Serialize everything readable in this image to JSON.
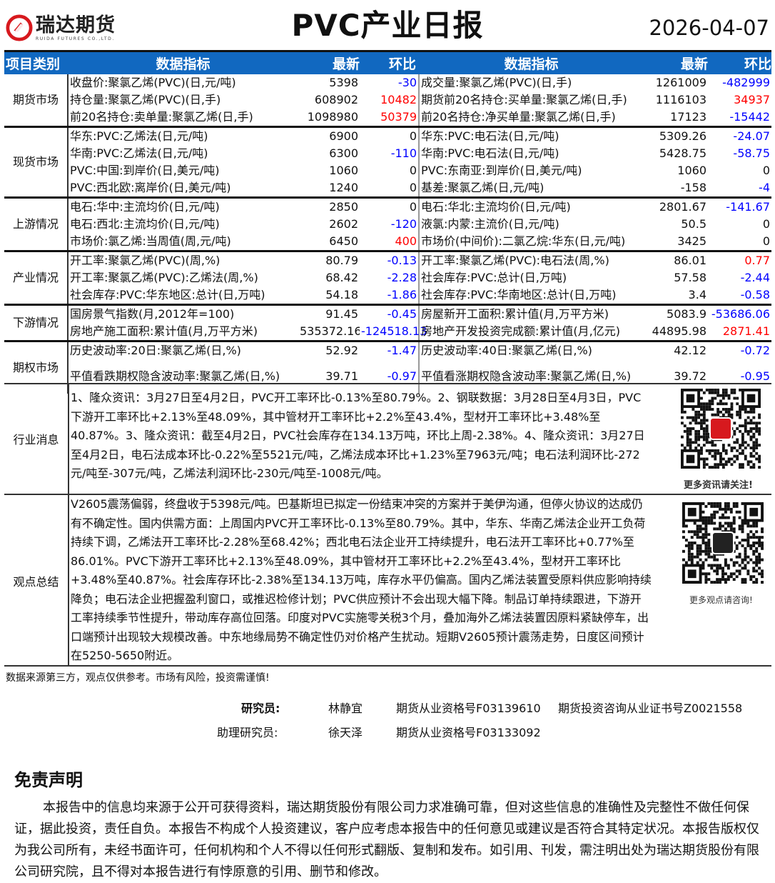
{
  "header": {
    "logo_cn": "瑞达期货",
    "logo_en": "RUIDA FUTURES CO.,LTD.",
    "title": "PVC产业日报",
    "date": "2026-04-07",
    "brand_color": "#d7191e"
  },
  "table": {
    "columns": [
      "项目类别",
      "数据指标",
      "最新",
      "环比",
      "数据指标",
      "最新",
      "环比"
    ],
    "header_color": "#1168c0",
    "sections": [
      {
        "category": "期货市场",
        "rows": [
          [
            "收盘价:聚氯乙烯(PVC)(日,元/吨)",
            "5398",
            "-30",
            "成交量:聚氯乙烯(PVC)(日,手)",
            "1261009",
            "-482999"
          ],
          [
            "持仓量:聚氯乙烯(PVC)(日,手)",
            "608902",
            "10482",
            "期货前20名持仓:买单量:聚氯乙烯(日,手)",
            "1116103",
            "34937"
          ],
          [
            "前20名持仓:卖单量:聚氯乙烯(日,手)",
            "1098980",
            "50379",
            "前20名持仓:净买单量:聚氯乙烯(日,手)",
            "17123",
            "-15442"
          ]
        ]
      },
      {
        "category": "现货市场",
        "rows": [
          [
            "华东:PVC:乙烯法(日,元/吨)",
            "6900",
            "0",
            "华东:PVC:电石法(日,元/吨)",
            "5309.26",
            "-24.07"
          ],
          [
            "华南:PVC:乙烯法(日,元/吨)",
            "6300",
            "-110",
            "华南:PVC:电石法(日,元/吨)",
            "5428.75",
            "-58.75"
          ],
          [
            "PVC:中国:到岸价(日,美元/吨)",
            "1060",
            "0",
            "PVC:东南亚:到岸价(日,美元/吨)",
            "1060",
            "0"
          ],
          [
            "PVC:西北欧:离岸价(日,美元/吨)",
            "1240",
            "0",
            "基差:聚氯乙烯(日,元/吨)",
            "-158",
            "-4"
          ]
        ]
      },
      {
        "category": "上游情况",
        "rows": [
          [
            "电石:华中:主流均价(日,元/吨)",
            "2850",
            "0",
            "电石:华北:主流均价(日,元/吨)",
            "2801.67",
            "-141.67"
          ],
          [
            "电石:西北:主流均价(日,元/吨)",
            "2602",
            "-120",
            "液氯:内蒙:主流价(日,元/吨)",
            "50.5",
            "0"
          ],
          [
            "市场价:氯乙烯:当周值(周,元/吨)",
            "6450",
            "400",
            "市场价(中间价):二氯乙烷:华东(日,元/吨)",
            "3425",
            "0"
          ]
        ]
      },
      {
        "category": "产业情况",
        "rows": [
          [
            "开工率:聚氯乙烯(PVC)(周,%)",
            "80.79",
            "-0.13",
            "开工率:聚氯乙烯(PVC):电石法(周,%)",
            "86.01",
            "0.77"
          ],
          [
            "开工率:聚氯乙烯(PVC):乙烯法(周,%)",
            "68.42",
            "-2.28",
            "社会库存:PVC:总计(日,万吨)",
            "57.58",
            "-2.44"
          ],
          [
            "社会库存:PVC:华东地区:总计(日,万吨)",
            "54.18",
            "-1.86",
            "社会库存:PVC:华南地区:总计(日,万吨)",
            "3.4",
            "-0.58"
          ]
        ]
      },
      {
        "category": "下游情况",
        "rows": [
          [
            "国房景气指数(月,2012年=100)",
            "91.45",
            "-0.45",
            "房屋新开工面积:累计值(月,万平方米)",
            "5083.9",
            "-53686.06"
          ],
          [
            "房地产施工面积:累计值(月,万平方米)",
            "535372.16",
            "-124518.13",
            "房地产开发投资完成额:累计值(月,亿元)",
            "44895.98",
            "2871.41"
          ]
        ]
      },
      {
        "category": "期权市场",
        "rows": [
          [
            "历史波动率:20日:聚氯乙烯(日,%)",
            "52.92",
            "-1.47",
            "历史波动率:40日:聚氯乙烯(日,%)",
            "42.12",
            "-0.72"
          ],
          [
            "平值看跌期权隐含波动率:聚氯乙烯(日,%)",
            "39.71",
            "-0.97",
            "平值看涨期权隐含波动率:聚氯乙烯(日,%)",
            "39.72",
            "-0.95"
          ]
        ]
      }
    ]
  },
  "news": {
    "label": "行业消息",
    "text": "1、隆众资讯：3月27日至4月2日，PVC开工率环比-0.13%至80.79%。2、钢联数据：3月28日至4月3日，PVC下游开工率环比+2.13%至48.09%，其中管材开工率环比+2.2%至43.4%，型材开工率环比+3.48%至40.87%。3、隆众资讯：截至4月2日，PVC社会库存在134.13万吨，环比上周-2.38%。4、隆众资讯：3月27日至4月2日，电石法成本环比-0.22%至5521元/吨，乙烯法成本环比+1.23%至7963元/吨；电石法利润环比-272元/吨至-307元/吨，乙烯法利润环比-230元/吨至-1008元/吨。",
    "qr_caption": "更多资讯请关注!"
  },
  "summary": {
    "label": "观点总结",
    "text": "V2605震荡偏弱，终盘收于5398元/吨。巴基斯坦已拟定一份结束冲突的方案并于美伊沟通，但停火协议的达成仍有不确定性。国内供需方面：上周国内PVC开工率环比-0.13%至80.79%。其中，华东、华南乙烯法企业开工负荷持续下调，乙烯法开工率环比-2.28%至68.42%；西北电石法企业开工持续提升，电石法开工率环比+0.77%至86.01%。PVC下游开工率环比+2.13%至48.09%，其中管材开工率环比+2.2%至43.4%，型材开工率环比+3.48%至40.87%。社会库存环比-2.38%至134.13万吨，库存水平仍偏高。国内乙烯法装置受原料供应影响持续降负；电石法企业把握盈利窗口，或推迟检修计划；PVC供应预计不会出现大幅下降。制品订单持续跟进，下游开工率持续季节性提升，带动库存高位回落。印度对PVC实施零关税3个月，叠加海外乙烯法装置因原料紧缺停车，出口端预计出现较大规模改善。中东地缘局势不确定性仍对价格产生扰动。短期V2605预计震荡走势，日度区间预计在5250-5650附近。",
    "qr_caption": "更多观点请咨询!"
  },
  "source_note": "数据来源第三方，观点仅供参考。市场有风险，投资需谨慎!",
  "staff": {
    "researcher_label": "研究员:",
    "researcher": "林静宜",
    "researcher_cert": "期货从业资格号F03139610",
    "researcher_cert2": "期货投资咨询从业证书号Z0021558",
    "assistant_label": "助理研究员:",
    "assistant": "徐天泽",
    "assistant_cert": "期货从业资格号F03133092"
  },
  "disclaimer": {
    "title": "免责声明",
    "text": "本报告中的信息均来源于公开可获得资料，瑞达期货股份有限公司力求准确可靠，但对这些信息的准确性及完整性不做任何保证，据此投资，责任自负。本报告不构成个人投资建议，客户应考虑本报告中的任何意见或建议是否符合其特定状况。本报告版权仅为我公司所有，未经书面许可，任何机构和个人不得以任何形式翻版、复制和发布。如引用、刊发，需注明出处为瑞达期货股份有限公司研究院，且不得对本报告进行有悖原意的引用、删节和修改。"
  }
}
